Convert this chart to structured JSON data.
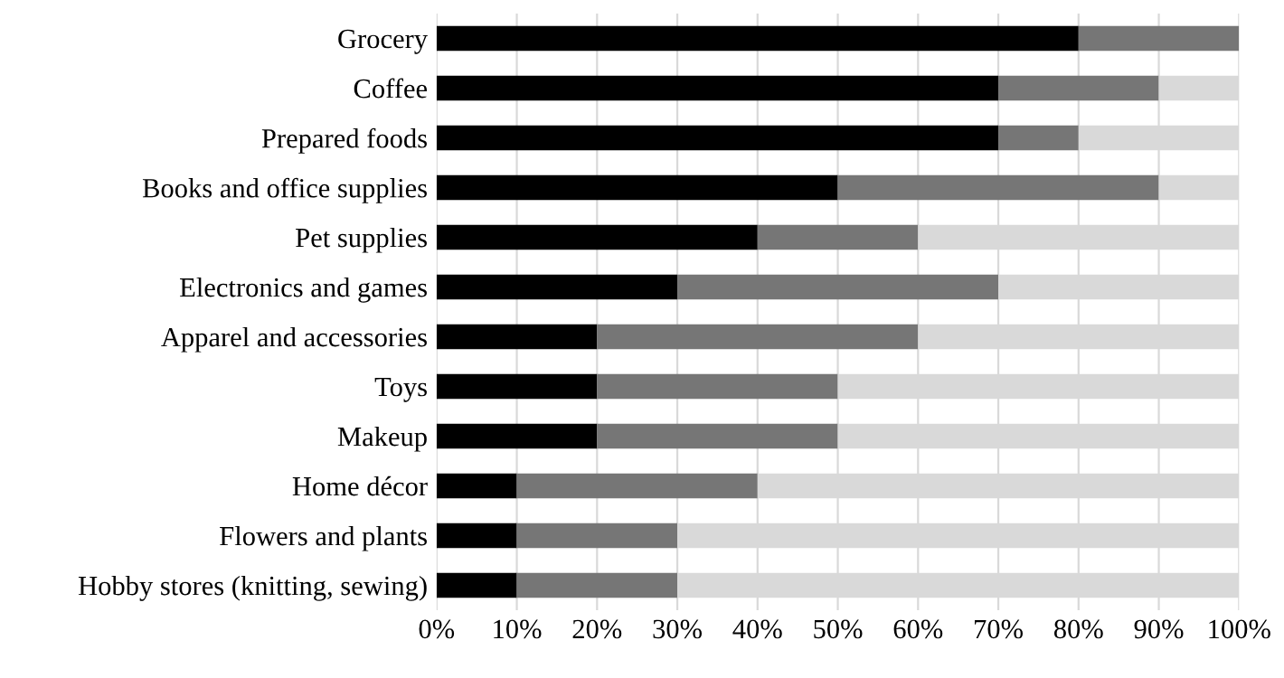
{
  "chart_data": {
    "type": "bar",
    "orientation": "horizontal",
    "stacked": true,
    "categories": [
      "Grocery",
      "Coffee",
      "Prepared foods",
      "Books and office supplies",
      "Pet supplies",
      "Electronics and games",
      "Apparel and accessories",
      "Toys",
      "Makeup",
      "Home décor",
      "Flowers and plants",
      "Hobby stores (knitting, sewing)"
    ],
    "series": [
      {
        "color": "#000000",
        "values": [
          80,
          70,
          70,
          50,
          40,
          30,
          20,
          20,
          20,
          10,
          10,
          10
        ]
      },
      {
        "color": "#767676",
        "values": [
          20,
          20,
          10,
          40,
          20,
          40,
          40,
          30,
          30,
          30,
          20,
          20
        ]
      },
      {
        "color": "#d9d9d9",
        "values": [
          0,
          10,
          20,
          10,
          40,
          30,
          40,
          50,
          50,
          60,
          70,
          70
        ]
      }
    ],
    "xlim": [
      0,
      100
    ],
    "xticks": [
      {
        "value": 0,
        "label": "0%"
      },
      {
        "value": 10,
        "label": "10%"
      },
      {
        "value": 20,
        "label": "20%"
      },
      {
        "value": 30,
        "label": "30%"
      },
      {
        "value": 40,
        "label": "40%"
      },
      {
        "value": 50,
        "label": "50%"
      },
      {
        "value": 60,
        "label": "60%"
      },
      {
        "value": 70,
        "label": "70%"
      },
      {
        "value": 80,
        "label": "80%"
      },
      {
        "value": 90,
        "label": "90%"
      },
      {
        "value": 100,
        "label": "100%"
      }
    ],
    "grid": "x"
  }
}
